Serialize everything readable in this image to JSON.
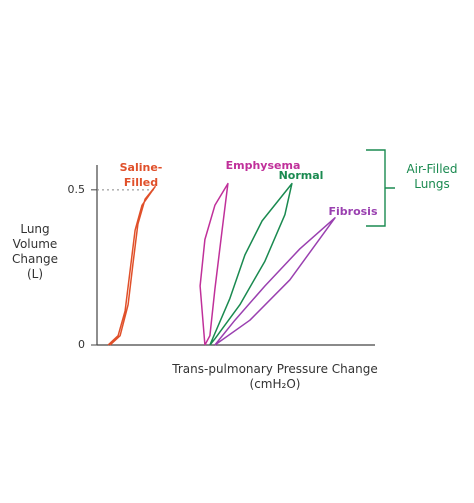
{
  "chart_data": {
    "type": "line",
    "x_label": "Trans-pulmonary Pressure Change (cmH₂O)",
    "y_label": "Lung Volume Change (L)",
    "annotation": "Air-Filled Lungs",
    "annotation_color": "#1a8a50",
    "xlim": [
      0,
      100
    ],
    "ylim": [
      0,
      0.58
    ],
    "yticks": [
      0,
      0.5
    ],
    "guide_line": 0.5,
    "series": [
      {
        "name": "Saline-Filled",
        "color": "#e0502a",
        "x": [
          4.0,
          7.6,
          10.1,
          11.9,
          13.7,
          16.2,
          20.9,
          17.3,
          14.7,
          12.9,
          11.2,
          8.3,
          4.7
        ],
        "values": [
          0,
          0.03,
          0.11,
          0.24,
          0.37,
          0.45,
          0.51,
          0.47,
          0.39,
          0.26,
          0.13,
          0.03,
          0
        ]
      },
      {
        "name": "Emphysema",
        "color": "#c0309a",
        "x": [
          38.8,
          37.1,
          38.8,
          42.4,
          47.1,
          45.0,
          42.4,
          40.6,
          38.8
        ],
        "values": [
          0,
          0.19,
          0.34,
          0.45,
          0.52,
          0.37,
          0.18,
          0.03,
          0
        ]
      },
      {
        "name": "Normal",
        "color": "#1a8a50",
        "x": [
          40.6,
          47.8,
          53.2,
          59.4,
          70.1,
          67.6,
          60.4,
          51.4,
          42.4,
          40.6
        ],
        "values": [
          0,
          0.15,
          0.29,
          0.4,
          0.52,
          0.42,
          0.27,
          0.13,
          0.02,
          0
        ]
      },
      {
        "name": "Fibrosis",
        "color": "#9a40b0",
        "x": [
          42.4,
          55.0,
          69.4,
          85.6,
          73.0,
          60.4,
          49.6,
          42.4
        ],
        "values": [
          0,
          0.08,
          0.21,
          0.41,
          0.31,
          0.19,
          0.08,
          0
        ]
      }
    ]
  }
}
